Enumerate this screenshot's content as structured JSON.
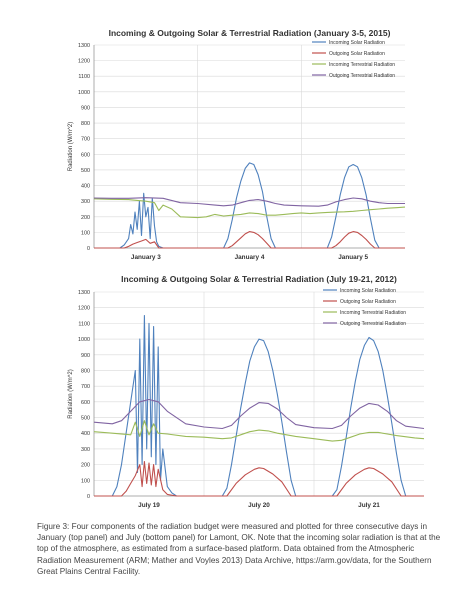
{
  "colors": {
    "incoming_solar": "#4f81bd",
    "outgoing_solar": "#c0504d",
    "incoming_terrestrial": "#9bbb59",
    "outgoing_terrestrial": "#8064a2",
    "grid": "#d9d9d9",
    "axis": "#999999"
  },
  "caption": "Figure 3: Four components of the radiation budget were measured and plotted for three consecutive days in January (top panel) and July (bottom panel) for Lamont, OK.  Note that the incoming solar radiation is that at the top of the atmosphere, as estimated from a surface-based platform.  Data obtained from the Atmospheric Radiation Measurement (ARM; Mather and Voyles 2013) Data Archive, https://arm.gov/data, for the Southern Great Plains Central Facility.",
  "chart_data": [
    {
      "type": "line",
      "title": "Incoming & Outgoing Solar & Terrestrial Radiation (January 3-5, 2015)",
      "xlabel": "",
      "ylabel": "Radiation (W/m^2)",
      "ylim": [
        0,
        1300
      ],
      "yticks": [
        0,
        100,
        200,
        300,
        400,
        500,
        600,
        700,
        800,
        900,
        1000,
        1100,
        1200,
        1300
      ],
      "xlim": [
        0,
        72
      ],
      "categories": [
        "January 3",
        "January 4",
        "January 5"
      ],
      "grid": true,
      "legend_position": "top-right",
      "series": [
        {
          "name": "Incoming Solar Radiation",
          "color_key": "incoming_solar",
          "x": [
            0,
            6,
            7,
            8,
            8.5,
            9,
            9.5,
            10,
            10.5,
            11,
            11.5,
            12,
            12.5,
            13,
            13.5,
            14,
            14.5,
            15,
            16,
            24,
            30,
            31,
            32,
            33,
            34,
            35,
            36,
            37,
            38,
            39,
            40,
            41,
            42,
            48,
            54,
            55,
            56,
            57,
            58,
            59,
            60,
            61,
            62,
            63,
            64,
            65,
            66,
            72
          ],
          "y": [
            0,
            0,
            20,
            60,
            150,
            90,
            230,
            120,
            300,
            80,
            350,
            200,
            260,
            60,
            320,
            140,
            40,
            10,
            0,
            0,
            0,
            60,
            180,
            320,
            430,
            510,
            545,
            535,
            470,
            360,
            200,
            60,
            0,
            0,
            0,
            70,
            200,
            340,
            450,
            520,
            535,
            520,
            450,
            340,
            190,
            50,
            0,
            0
          ]
        },
        {
          "name": "Outgoing Solar Radiation",
          "color_key": "outgoing_solar",
          "x": [
            0,
            7,
            8,
            9,
            10,
            11,
            12,
            13,
            14,
            15,
            24,
            31,
            32,
            33,
            34,
            35,
            36,
            37,
            38,
            39,
            40,
            41,
            48,
            55,
            56,
            57,
            58,
            59,
            60,
            61,
            62,
            63,
            64,
            65,
            72
          ],
          "y": [
            0,
            0,
            10,
            25,
            35,
            45,
            55,
            30,
            40,
            0,
            0,
            0,
            15,
            40,
            65,
            90,
            105,
            100,
            85,
            60,
            30,
            0,
            0,
            0,
            15,
            40,
            70,
            95,
            105,
            100,
            80,
            55,
            25,
            0,
            0
          ]
        },
        {
          "name": "Incoming Terrestrial Radiation",
          "color_key": "incoming_terrestrial",
          "x": [
            0,
            4,
            8,
            10,
            12,
            14,
            15,
            16,
            18,
            20,
            24,
            26,
            28,
            30,
            32,
            34,
            36,
            38,
            40,
            42,
            44,
            46,
            48,
            50,
            52,
            54,
            56,
            58,
            60,
            62,
            64,
            66,
            68,
            70,
            72
          ],
          "y": [
            315,
            312,
            310,
            305,
            300,
            290,
            240,
            275,
            250,
            200,
            195,
            200,
            215,
            205,
            210,
            215,
            225,
            220,
            210,
            210,
            215,
            220,
            225,
            220,
            225,
            228,
            230,
            232,
            235,
            240,
            245,
            250,
            255,
            258,
            262
          ]
        },
        {
          "name": "Outgoing Terrestrial Radiation",
          "color_key": "outgoing_terrestrial",
          "x": [
            0,
            4,
            8,
            12,
            16,
            20,
            24,
            28,
            30,
            32,
            34,
            36,
            38,
            40,
            42,
            44,
            48,
            52,
            54,
            56,
            58,
            60,
            62,
            64,
            66,
            68,
            72
          ],
          "y": [
            320,
            318,
            318,
            322,
            318,
            290,
            285,
            275,
            270,
            275,
            290,
            305,
            310,
            300,
            285,
            275,
            270,
            268,
            275,
            295,
            310,
            320,
            315,
            300,
            290,
            285,
            285
          ]
        }
      ]
    },
    {
      "type": "line",
      "title": "Incoming & Outgoing Solar & Terrestrial Radiation (July 19-21, 2012)",
      "xlabel": "",
      "ylabel": "Radiation (W/m^2)",
      "ylim": [
        0,
        1300
      ],
      "yticks": [
        0,
        100,
        200,
        300,
        400,
        500,
        600,
        700,
        800,
        900,
        1000,
        1100,
        1200,
        1300
      ],
      "xlim": [
        0,
        72
      ],
      "categories": [
        "July 19",
        "July 20",
        "July 21"
      ],
      "grid": true,
      "legend_position": "top-right",
      "series": [
        {
          "name": "Incoming Solar Radiation",
          "color_key": "incoming_solar",
          "x": [
            0,
            2,
            4,
            5,
            6,
            7,
            8,
            9,
            9.5,
            10,
            10.5,
            11,
            11.5,
            12,
            12.5,
            13,
            13.5,
            14,
            14.5,
            15,
            16,
            17,
            18,
            20,
            24,
            26,
            28,
            29,
            30,
            31,
            32,
            33,
            34,
            35,
            36,
            37,
            38,
            39,
            40,
            41,
            42,
            43,
            44,
            46,
            48,
            50,
            52,
            53,
            54,
            55,
            56,
            57,
            58,
            59,
            60,
            61,
            62,
            63,
            64,
            65,
            66,
            67,
            68,
            70,
            72
          ],
          "y": [
            0,
            0,
            0,
            60,
            200,
            400,
            600,
            800,
            150,
            1000,
            200,
            1150,
            300,
            1100,
            250,
            1080,
            200,
            950,
            100,
            300,
            60,
            20,
            0,
            0,
            0,
            0,
            0,
            50,
            200,
            380,
            560,
            720,
            860,
            950,
            1000,
            990,
            920,
            800,
            650,
            470,
            280,
            100,
            0,
            0,
            0,
            0,
            0,
            40,
            190,
            370,
            560,
            730,
            870,
            960,
            1010,
            990,
            920,
            800,
            640,
            460,
            270,
            100,
            0,
            0,
            0
          ]
        },
        {
          "name": "Outgoing Solar Radiation",
          "color_key": "outgoing_solar",
          "x": [
            0,
            6,
            7,
            8,
            9,
            10,
            10.5,
            11,
            11.5,
            12,
            12.5,
            13,
            13.5,
            14,
            15,
            16,
            18,
            24,
            29,
            31,
            33,
            35,
            36,
            37,
            39,
            41,
            43,
            48,
            53,
            55,
            57,
            59,
            60,
            61,
            63,
            65,
            67,
            72
          ],
          "y": [
            0,
            0,
            30,
            80,
            130,
            200,
            60,
            220,
            80,
            210,
            70,
            200,
            60,
            170,
            40,
            10,
            0,
            0,
            0,
            80,
            135,
            170,
            180,
            175,
            140,
            90,
            0,
            0,
            0,
            80,
            135,
            170,
            180,
            175,
            140,
            90,
            0,
            0
          ]
        },
        {
          "name": "Incoming Terrestrial Radiation",
          "color_key": "incoming_terrestrial",
          "x": [
            0,
            4,
            8,
            9,
            10,
            11,
            12,
            13,
            14,
            16,
            20,
            24,
            28,
            30,
            32,
            34,
            36,
            38,
            40,
            44,
            48,
            52,
            54,
            56,
            58,
            60,
            62,
            64,
            66,
            70,
            72
          ],
          "y": [
            410,
            400,
            390,
            470,
            380,
            480,
            390,
            460,
            400,
            395,
            380,
            375,
            365,
            370,
            390,
            410,
            420,
            415,
            400,
            380,
            365,
            350,
            355,
            375,
            395,
            405,
            405,
            395,
            385,
            370,
            365
          ]
        },
        {
          "name": "Outgoing Terrestrial Radiation",
          "color_key": "outgoing_terrestrial",
          "x": [
            0,
            4,
            6,
            8,
            10,
            12,
            14,
            16,
            20,
            24,
            28,
            30,
            32,
            34,
            36,
            38,
            40,
            42,
            44,
            48,
            52,
            54,
            56,
            58,
            60,
            62,
            64,
            66,
            68,
            72
          ],
          "y": [
            470,
            460,
            480,
            540,
            600,
            615,
            600,
            540,
            460,
            440,
            430,
            450,
            510,
            560,
            595,
            590,
            555,
            500,
            455,
            435,
            430,
            450,
            510,
            560,
            590,
            580,
            540,
            480,
            445,
            430
          ]
        }
      ]
    }
  ]
}
